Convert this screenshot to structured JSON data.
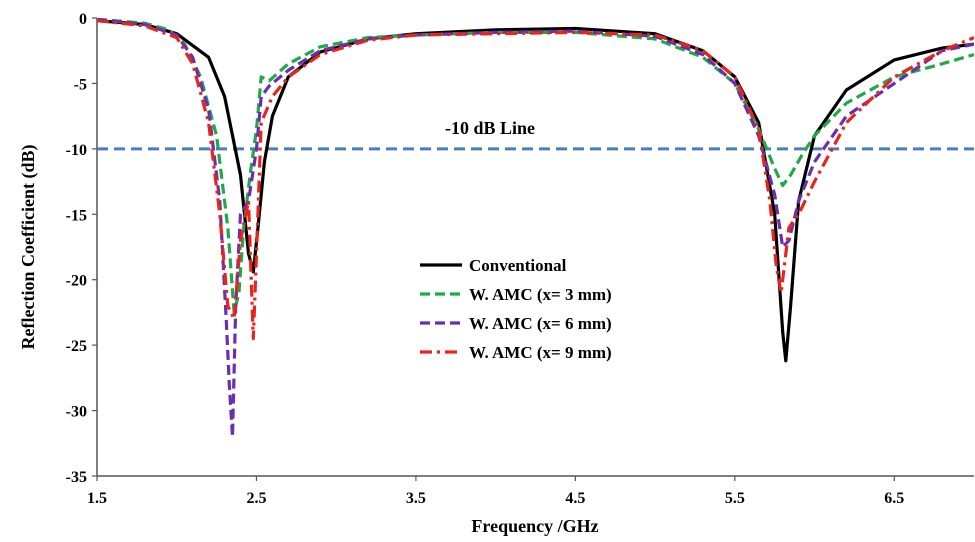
{
  "chart_data": {
    "type": "line",
    "title": "",
    "xlabel": "Frequency /GHz",
    "ylabel": "Reflection Coefficient (dB)",
    "xlim": [
      1.5,
      7.0
    ],
    "ylim": [
      -35,
      0
    ],
    "x_ticks": [
      1.5,
      2.5,
      3.5,
      4.5,
      5.5,
      6.5
    ],
    "x_tick_labels": [
      "1.5",
      "2.5",
      "3.5",
      "4.5",
      "5.5",
      "6.5"
    ],
    "y_ticks": [
      0,
      -5,
      -10,
      -15,
      -20,
      -25,
      -30,
      -35
    ],
    "y_tick_labels": [
      "0",
      "-5",
      "-10",
      "-15",
      "-20",
      "-25",
      "-30",
      "-35"
    ],
    "grid": false,
    "legend_position": "center",
    "reference_line": {
      "y": -10,
      "label": "-10 dB Line",
      "color": "#4a7ebb",
      "style": "dashed"
    },
    "series": [
      {
        "name": "Conventional",
        "color": "#000000",
        "style": "solid",
        "points": [
          [
            1.5,
            -0.2
          ],
          [
            1.8,
            -0.5
          ],
          [
            2.0,
            -1.2
          ],
          [
            2.2,
            -3.0
          ],
          [
            2.3,
            -6.0
          ],
          [
            2.4,
            -12.0
          ],
          [
            2.45,
            -18.0
          ],
          [
            2.48,
            -19.4
          ],
          [
            2.51,
            -16.0
          ],
          [
            2.55,
            -11.0
          ],
          [
            2.6,
            -7.5
          ],
          [
            2.7,
            -4.5
          ],
          [
            2.9,
            -2.6
          ],
          [
            3.2,
            -1.6
          ],
          [
            3.5,
            -1.2
          ],
          [
            4.0,
            -0.9
          ],
          [
            4.5,
            -0.8
          ],
          [
            5.0,
            -1.2
          ],
          [
            5.3,
            -2.5
          ],
          [
            5.5,
            -4.5
          ],
          [
            5.65,
            -8.0
          ],
          [
            5.75,
            -15.0
          ],
          [
            5.8,
            -24.0
          ],
          [
            5.82,
            -26.2
          ],
          [
            5.85,
            -22.0
          ],
          [
            5.9,
            -14.0
          ],
          [
            6.0,
            -9.0
          ],
          [
            6.2,
            -5.5
          ],
          [
            6.5,
            -3.2
          ],
          [
            6.8,
            -2.3
          ],
          [
            7.0,
            -2.0
          ]
        ]
      },
      {
        "name": "W. AMC (x= 3 mm)",
        "color": "#1faa4a",
        "style": "dashed",
        "points": [
          [
            1.5,
            -0.1
          ],
          [
            1.8,
            -0.4
          ],
          [
            1.95,
            -0.9
          ],
          [
            2.05,
            -2.0
          ],
          [
            2.15,
            -4.5
          ],
          [
            2.25,
            -9.0
          ],
          [
            2.32,
            -16.0
          ],
          [
            2.36,
            -22.5
          ],
          [
            2.39,
            -21.0
          ],
          [
            2.42,
            -16.0
          ],
          [
            2.46,
            -12.0
          ],
          [
            2.5,
            -8.5
          ],
          [
            2.53,
            -4.5
          ],
          [
            2.58,
            -4.8
          ],
          [
            2.7,
            -3.5
          ],
          [
            2.9,
            -2.2
          ],
          [
            3.2,
            -1.5
          ],
          [
            3.5,
            -1.3
          ],
          [
            4.0,
            -1.1
          ],
          [
            4.5,
            -1.1
          ],
          [
            5.0,
            -1.6
          ],
          [
            5.3,
            -3.0
          ],
          [
            5.5,
            -5.0
          ],
          [
            5.65,
            -8.5
          ],
          [
            5.75,
            -11.5
          ],
          [
            5.8,
            -12.8
          ],
          [
            5.85,
            -12.0
          ],
          [
            5.92,
            -10.5
          ],
          [
            6.0,
            -9.0
          ],
          [
            6.2,
            -6.5
          ],
          [
            6.5,
            -4.5
          ],
          [
            6.8,
            -3.5
          ],
          [
            7.0,
            -2.8
          ]
        ]
      },
      {
        "name": "W. AMC (x= 6 mm)",
        "color": "#6a2fb0",
        "style": "dashed",
        "points": [
          [
            1.5,
            -0.1
          ],
          [
            1.8,
            -0.5
          ],
          [
            2.0,
            -1.3
          ],
          [
            2.1,
            -3.0
          ],
          [
            2.2,
            -7.0
          ],
          [
            2.27,
            -14.0
          ],
          [
            2.31,
            -23.0
          ],
          [
            2.33,
            -28.0
          ],
          [
            2.35,
            -32.0
          ],
          [
            2.37,
            -22.0
          ],
          [
            2.4,
            -15.0
          ],
          [
            2.45,
            -14.0
          ],
          [
            2.5,
            -10.0
          ],
          [
            2.53,
            -6.0
          ],
          [
            2.58,
            -5.2
          ],
          [
            2.7,
            -4.0
          ],
          [
            2.9,
            -2.5
          ],
          [
            3.2,
            -1.6
          ],
          [
            3.5,
            -1.3
          ],
          [
            4.0,
            -1.1
          ],
          [
            4.5,
            -1.0
          ],
          [
            5.0,
            -1.4
          ],
          [
            5.3,
            -2.8
          ],
          [
            5.5,
            -5.0
          ],
          [
            5.65,
            -9.0
          ],
          [
            5.75,
            -13.5
          ],
          [
            5.8,
            -17.5
          ],
          [
            5.84,
            -17.0
          ],
          [
            5.9,
            -14.0
          ],
          [
            6.0,
            -11.0
          ],
          [
            6.2,
            -7.5
          ],
          [
            6.5,
            -5.0
          ],
          [
            6.8,
            -2.5
          ],
          [
            7.0,
            -2.0
          ]
        ]
      },
      {
        "name": "W. AMC (x= 9 mm)",
        "color": "#e8241e",
        "style": "dash-dot",
        "points": [
          [
            1.5,
            -0.2
          ],
          [
            1.8,
            -0.6
          ],
          [
            2.0,
            -1.5
          ],
          [
            2.1,
            -3.5
          ],
          [
            2.2,
            -8.0
          ],
          [
            2.27,
            -15.0
          ],
          [
            2.32,
            -22.0
          ],
          [
            2.36,
            -23.0
          ],
          [
            2.4,
            -17.0
          ],
          [
            2.45,
            -14.0
          ],
          [
            2.48,
            -24.5
          ],
          [
            2.5,
            -18.0
          ],
          [
            2.53,
            -8.0
          ],
          [
            2.6,
            -6.0
          ],
          [
            2.7,
            -4.5
          ],
          [
            2.9,
            -2.8
          ],
          [
            3.2,
            -1.7
          ],
          [
            3.5,
            -1.3
          ],
          [
            4.0,
            -1.2
          ],
          [
            4.5,
            -1.1
          ],
          [
            5.0,
            -1.3
          ],
          [
            5.3,
            -2.5
          ],
          [
            5.5,
            -4.5
          ],
          [
            5.65,
            -8.5
          ],
          [
            5.72,
            -14.0
          ],
          [
            5.76,
            -19.0
          ],
          [
            5.79,
            -21.0
          ],
          [
            5.84,
            -16.0
          ],
          [
            5.9,
            -15.0
          ],
          [
            6.0,
            -12.5
          ],
          [
            6.2,
            -8.0
          ],
          [
            6.5,
            -4.5
          ],
          [
            6.8,
            -2.5
          ],
          [
            7.0,
            -1.5
          ]
        ]
      }
    ]
  }
}
